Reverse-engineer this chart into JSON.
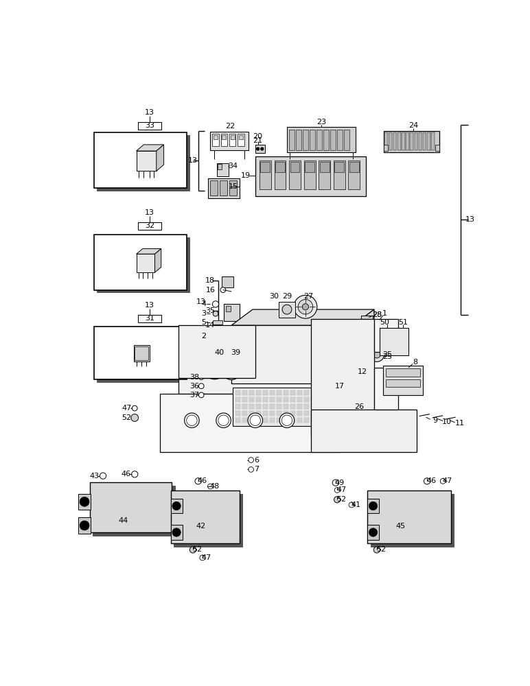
{
  "bg_color": "#ffffff",
  "figsize": [
    7.72,
    10.0
  ],
  "dpi": 100
}
